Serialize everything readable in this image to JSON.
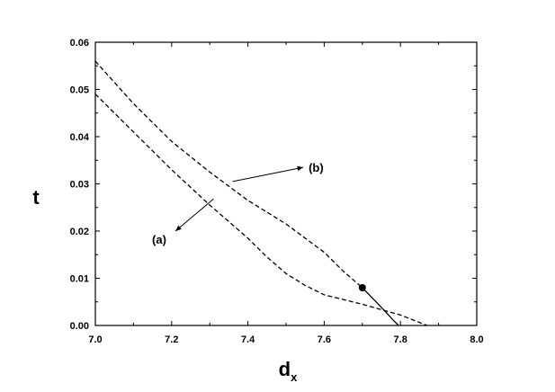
{
  "chart_data": {
    "type": "line",
    "title": "",
    "xlabel": "d",
    "xlabel_subscript": "x",
    "ylabel": "t",
    "xlim": [
      7.0,
      8.0
    ],
    "ylim": [
      0.0,
      0.06
    ],
    "xticks": [
      "7.0",
      "7.2",
      "7.4",
      "7.6",
      "7.8",
      "8.0"
    ],
    "yticks": [
      "0.00",
      "0.01",
      "0.02",
      "0.03",
      "0.04",
      "0.05",
      "0.06"
    ],
    "grid": false,
    "series": [
      {
        "style": "dashed",
        "points": [
          [
            7.0,
            0.056
          ],
          [
            7.1,
            0.047
          ],
          [
            7.2,
            0.039
          ],
          [
            7.3,
            0.0325
          ],
          [
            7.4,
            0.0265
          ],
          [
            7.5,
            0.0215
          ],
          [
            7.6,
            0.0155
          ],
          [
            7.65,
            0.0115
          ],
          [
            7.7,
            0.008
          ]
        ]
      },
      {
        "style": "solid",
        "points": [
          [
            7.7,
            0.008
          ],
          [
            7.73,
            0.0055
          ],
          [
            7.76,
            0.003
          ],
          [
            7.78,
            0.0012
          ],
          [
            7.795,
            0.0
          ]
        ]
      },
      {
        "style": "dashed",
        "points": [
          [
            7.0,
            0.049
          ],
          [
            7.1,
            0.041
          ],
          [
            7.2,
            0.033
          ],
          [
            7.3,
            0.0255
          ],
          [
            7.4,
            0.0185
          ],
          [
            7.45,
            0.0145
          ],
          [
            7.5,
            0.011
          ],
          [
            7.55,
            0.0085
          ],
          [
            7.6,
            0.0065
          ],
          [
            7.7,
            0.0045
          ],
          [
            7.8,
            0.0022
          ],
          [
            7.87,
            0.0
          ]
        ]
      }
    ],
    "marker": {
      "x": 7.7,
      "y": 0.008
    },
    "annotations": [
      {
        "text": "(b)",
        "arrow_from": [
          7.545,
          0.0335
        ],
        "arrow_to": [
          7.36,
          0.0305
        ]
      },
      {
        "text": "(a)",
        "arrow_from": [
          7.21,
          0.02
        ],
        "arrow_to": [
          7.31,
          0.0268
        ]
      }
    ]
  }
}
